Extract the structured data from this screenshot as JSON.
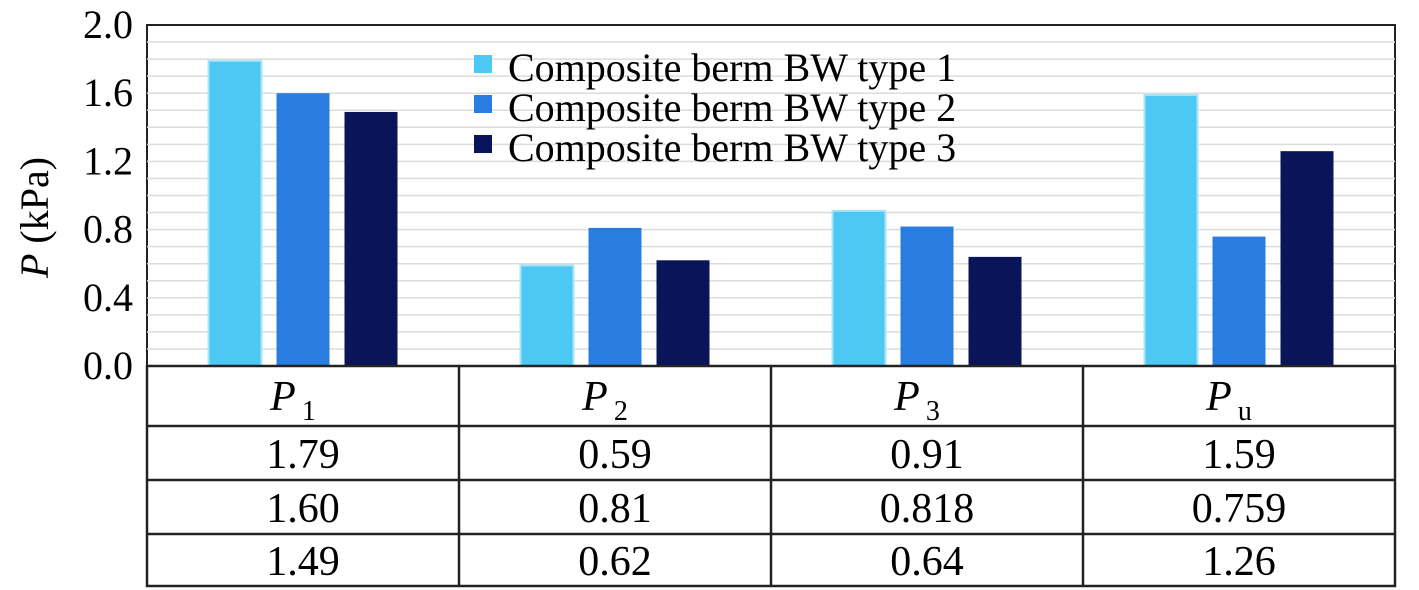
{
  "chart_data": {
    "type": "bar",
    "categories": [
      {
        "main": "P",
        "sub": "1"
      },
      {
        "main": "P",
        "sub": "2"
      },
      {
        "main": "P",
        "sub": "3"
      },
      {
        "main": "P",
        "sub": "u"
      }
    ],
    "series": [
      {
        "name": "Composite berm BW type 1",
        "color": "#4dc8f4",
        "values": [
          1.79,
          0.59,
          0.91,
          1.59
        ],
        "labels": [
          "1.79",
          "0.59",
          "0.91",
          "1.59"
        ]
      },
      {
        "name": "Composite berm BW type 2",
        "color": "#2a7de0",
        "values": [
          1.6,
          0.81,
          0.818,
          0.759
        ],
        "labels": [
          "1.60",
          "0.81",
          "0.818",
          "0.759"
        ]
      },
      {
        "name": "Composite berm BW type 3",
        "color": "#0a1458",
        "values": [
          1.49,
          0.62,
          0.64,
          1.26
        ],
        "labels": [
          "1.49",
          "0.62",
          "0.64",
          "1.26"
        ]
      }
    ],
    "yticks": [
      "0.0",
      "0.4",
      "0.8",
      "1.2",
      "1.6",
      "2.0"
    ],
    "ylim": [
      0,
      2.0
    ],
    "ylabel": {
      "italic": "P",
      "rest": " (kPa)"
    },
    "grid": true,
    "legend": "top-center",
    "data_table": true
  }
}
